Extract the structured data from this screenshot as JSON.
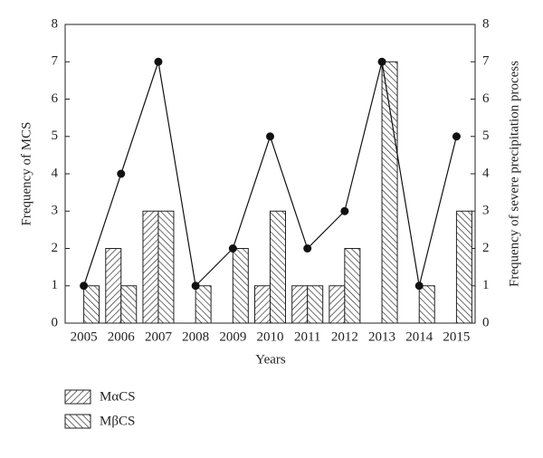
{
  "chart_data": {
    "type": "bar",
    "x_label": "Years",
    "y_label": "Frequency of MCS",
    "y2_label": "Frequency of severe precipitation process",
    "categories": [
      "2005",
      "2006",
      "2007",
      "2008",
      "2009",
      "2010",
      "2011",
      "2012",
      "2013",
      "2014",
      "2015"
    ],
    "series": [
      {
        "name": "MαCS",
        "color": "#222222",
        "hatch": "forward",
        "values": [
          0,
          2,
          3,
          0,
          0,
          1,
          1,
          1,
          0,
          0,
          0
        ]
      },
      {
        "name": "MβCS",
        "color": "#222222",
        "hatch": "backward",
        "values": [
          1,
          1,
          3,
          1,
          2,
          3,
          1,
          2,
          7,
          1,
          3
        ]
      },
      {
        "type": "line",
        "axis": "y2",
        "color": "#111111",
        "values": [
          1,
          4,
          7,
          1,
          2,
          5,
          2,
          3,
          7,
          1,
          5
        ]
      }
    ],
    "ylim": [
      0,
      8
    ],
    "yticks": [
      0,
      1,
      2,
      3,
      4,
      5,
      6,
      7,
      8
    ],
    "y2lim": [
      0,
      8
    ],
    "y2ticks": [
      0,
      1,
      2,
      3,
      4,
      5,
      6,
      7,
      8
    ],
    "grid": false
  }
}
